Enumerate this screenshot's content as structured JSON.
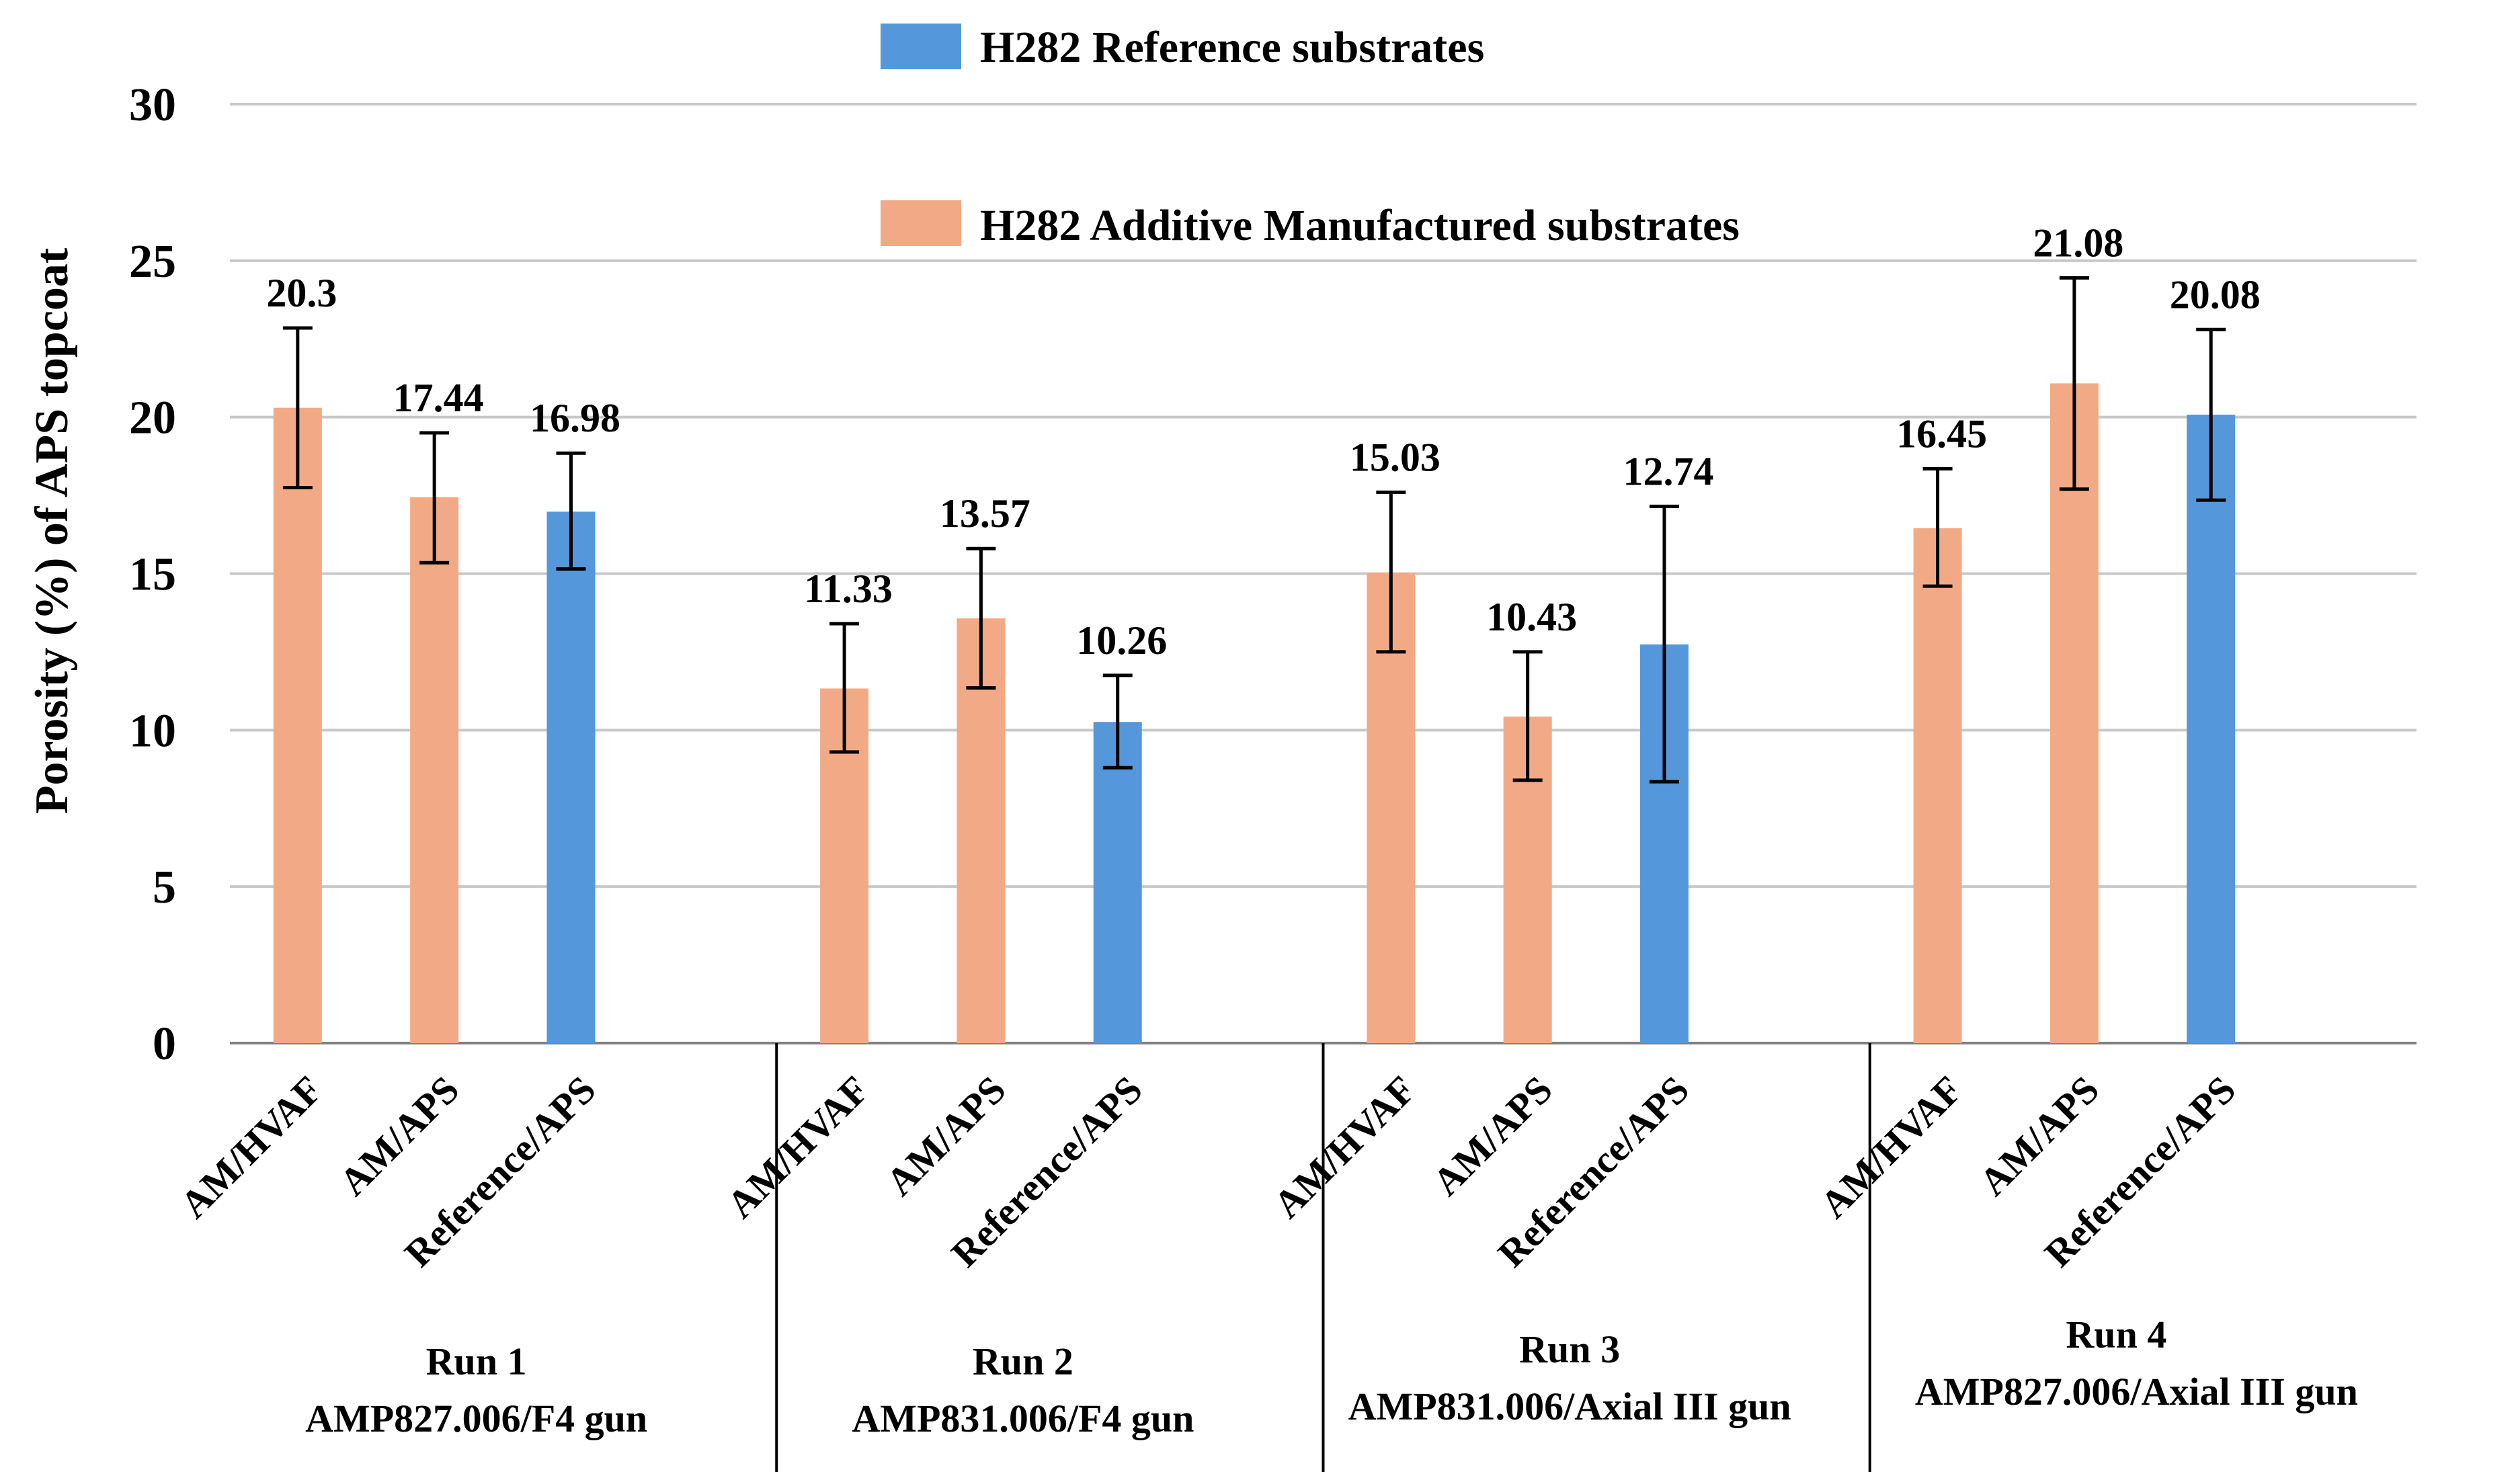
{
  "chart_data": {
    "type": "bar",
    "title": "",
    "xlabel": "",
    "ylabel": "Porosity (%) of APS topcoat",
    "ylim": [
      0,
      30
    ],
    "yticks": [
      0,
      5,
      10,
      15,
      20,
      25,
      30
    ],
    "grid": true,
    "legend_position": "top-center",
    "legend": [
      {
        "label": "H282 Reference substrates",
        "color": "#5597db"
      },
      {
        "label": "H282 Additive Manufactured substrates",
        "color": "#f2aa86"
      }
    ],
    "groups": [
      {
        "run": "Run 1",
        "subtitle": "AMP827.006/F4 gun",
        "bars": [
          {
            "category": "AM/HVAF",
            "value": 20.3,
            "label": "20.3",
            "err_low": 17.75,
            "err_high": 22.85,
            "series": "H282 Additive Manufactured substrates"
          },
          {
            "category": "AM/APS",
            "value": 17.44,
            "label": "17.44",
            "err_low": 15.35,
            "err_high": 19.5,
            "series": "H282 Additive Manufactured substrates"
          },
          {
            "category": "Reference/APS",
            "value": 16.98,
            "label": "16.98",
            "err_low": 15.15,
            "err_high": 18.85,
            "series": "H282 Reference substrates"
          }
        ]
      },
      {
        "run": "Run 2",
        "subtitle": "AMP831.006/F4 gun",
        "bars": [
          {
            "category": "AM/HVAF",
            "value": 11.33,
            "label": "11.33",
            "err_low": 9.3,
            "err_high": 13.4,
            "series": "H282 Additive Manufactured substrates"
          },
          {
            "category": "AM/APS",
            "value": 13.57,
            "label": "13.57",
            "err_low": 11.35,
            "err_high": 15.8,
            "series": "H282 Additive Manufactured substrates"
          },
          {
            "category": "Reference/APS",
            "value": 10.26,
            "label": "10.26",
            "err_low": 8.8,
            "err_high": 11.75,
            "series": "H282 Reference substrates"
          }
        ]
      },
      {
        "run": "Run 3",
        "subtitle": "AMP831.006/Axial III gun",
        "bars": [
          {
            "category": "AM/HVAF",
            "value": 15.03,
            "label": "15.03",
            "err_low": 12.5,
            "err_high": 17.6,
            "series": "H282 Additive Manufactured substrates"
          },
          {
            "category": "AM/APS",
            "value": 10.43,
            "label": "10.43",
            "err_low": 8.4,
            "err_high": 12.5,
            "series": "H282 Additive Manufactured substrates"
          },
          {
            "category": "Reference/APS",
            "value": 12.74,
            "label": "12.74",
            "err_low": 8.35,
            "err_high": 17.15,
            "series": "H282 Reference substrates"
          }
        ]
      },
      {
        "run": "Run 4",
        "subtitle": "AMP827.006/Axial III gun",
        "bars": [
          {
            "category": "AM/HVAF",
            "value": 16.45,
            "label": "16.45",
            "err_low": 14.6,
            "err_high": 18.35,
            "series": "H282 Additive Manufactured substrates"
          },
          {
            "category": "AM/APS",
            "value": 21.08,
            "label": "21.08",
            "err_low": 17.7,
            "err_high": 24.45,
            "series": "H282 Additive Manufactured substrates"
          },
          {
            "category": "Reference/APS",
            "value": 20.08,
            "label": "20.08",
            "err_low": 17.35,
            "err_high": 22.8,
            "series": "H282 Reference substrates"
          }
        ]
      }
    ]
  }
}
